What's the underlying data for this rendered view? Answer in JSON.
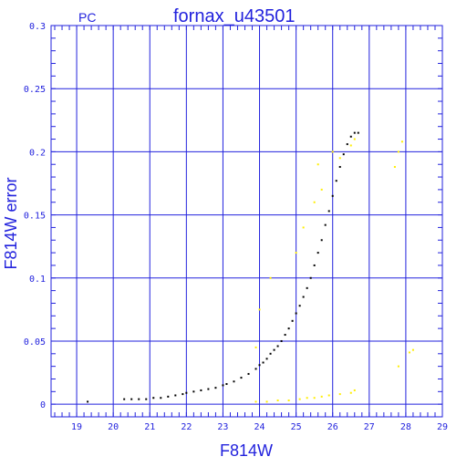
{
  "chart_data": {
    "type": "scatter",
    "panel_label": "PC",
    "title": "fornax_u43501",
    "xlabel": "F814W",
    "ylabel": "F814W error",
    "xlim": [
      18.3,
      29
    ],
    "ylim": [
      -0.01,
      0.3
    ],
    "x_ticks": [
      "19",
      "20",
      "21",
      "22",
      "23",
      "24",
      "25",
      "26",
      "27",
      "28",
      "29"
    ],
    "y_ticks": [
      "0",
      "0.05",
      "0.1",
      "0.15",
      "0.2",
      "0.25",
      "0.3"
    ],
    "grid": true,
    "colors": {
      "axis": "#2222dd",
      "grid": "#2222dd",
      "main_series": "#000000",
      "outliers": "#ffee00"
    },
    "series": [
      {
        "color": "#000000",
        "points": [
          [
            19.3,
            0.002
          ],
          [
            20.3,
            0.004
          ],
          [
            20.5,
            0.004
          ],
          [
            20.7,
            0.004
          ],
          [
            20.9,
            0.004
          ],
          [
            21.1,
            0.005
          ],
          [
            21.3,
            0.005
          ],
          [
            21.5,
            0.006
          ],
          [
            21.7,
            0.007
          ],
          [
            21.9,
            0.008
          ],
          [
            22.0,
            0.009
          ],
          [
            22.2,
            0.01
          ],
          [
            22.4,
            0.011
          ],
          [
            22.6,
            0.012
          ],
          [
            22.8,
            0.013
          ],
          [
            23.0,
            0.015
          ],
          [
            23.1,
            0.016
          ],
          [
            23.3,
            0.018
          ],
          [
            23.5,
            0.021
          ],
          [
            23.7,
            0.024
          ],
          [
            23.9,
            0.028
          ],
          [
            24.0,
            0.031
          ],
          [
            24.1,
            0.033
          ],
          [
            24.2,
            0.036
          ],
          [
            24.3,
            0.04
          ],
          [
            24.4,
            0.043
          ],
          [
            24.5,
            0.046
          ],
          [
            24.6,
            0.05
          ],
          [
            24.7,
            0.055
          ],
          [
            24.8,
            0.06
          ],
          [
            24.9,
            0.066
          ],
          [
            25.0,
            0.072
          ],
          [
            25.1,
            0.078
          ],
          [
            25.2,
            0.085
          ],
          [
            25.3,
            0.092
          ],
          [
            25.4,
            0.1
          ],
          [
            25.5,
            0.11
          ],
          [
            25.6,
            0.12
          ],
          [
            25.7,
            0.13
          ],
          [
            25.8,
            0.142
          ],
          [
            25.9,
            0.153
          ],
          [
            26.0,
            0.165
          ],
          [
            26.1,
            0.177
          ],
          [
            26.2,
            0.188
          ],
          [
            26.3,
            0.198
          ],
          [
            26.4,
            0.206
          ],
          [
            26.5,
            0.212
          ],
          [
            26.6,
            0.215
          ],
          [
            26.7,
            0.215
          ]
        ]
      },
      {
        "color": "#ffee00",
        "points": [
          [
            23.9,
            0.002
          ],
          [
            24.2,
            0.002
          ],
          [
            24.5,
            0.003
          ],
          [
            24.8,
            0.003
          ],
          [
            25.1,
            0.004
          ],
          [
            25.3,
            0.005
          ],
          [
            25.5,
            0.005
          ],
          [
            25.7,
            0.006
          ],
          [
            25.9,
            0.007
          ],
          [
            26.2,
            0.008
          ],
          [
            26.5,
            0.009
          ],
          [
            26.6,
            0.011
          ],
          [
            27.8,
            0.03
          ],
          [
            28.1,
            0.041
          ],
          [
            28.2,
            0.043
          ],
          [
            23.9,
            0.045
          ],
          [
            24.0,
            0.075
          ],
          [
            24.3,
            0.1
          ],
          [
            25.0,
            0.12
          ],
          [
            25.2,
            0.14
          ],
          [
            25.5,
            0.16
          ],
          [
            25.7,
            0.17
          ],
          [
            25.6,
            0.19
          ],
          [
            26.0,
            0.2
          ],
          [
            26.2,
            0.195
          ],
          [
            26.5,
            0.205
          ],
          [
            26.6,
            0.21
          ],
          [
            27.7,
            0.188
          ],
          [
            27.8,
            0.2
          ],
          [
            27.9,
            0.208
          ]
        ]
      }
    ]
  }
}
